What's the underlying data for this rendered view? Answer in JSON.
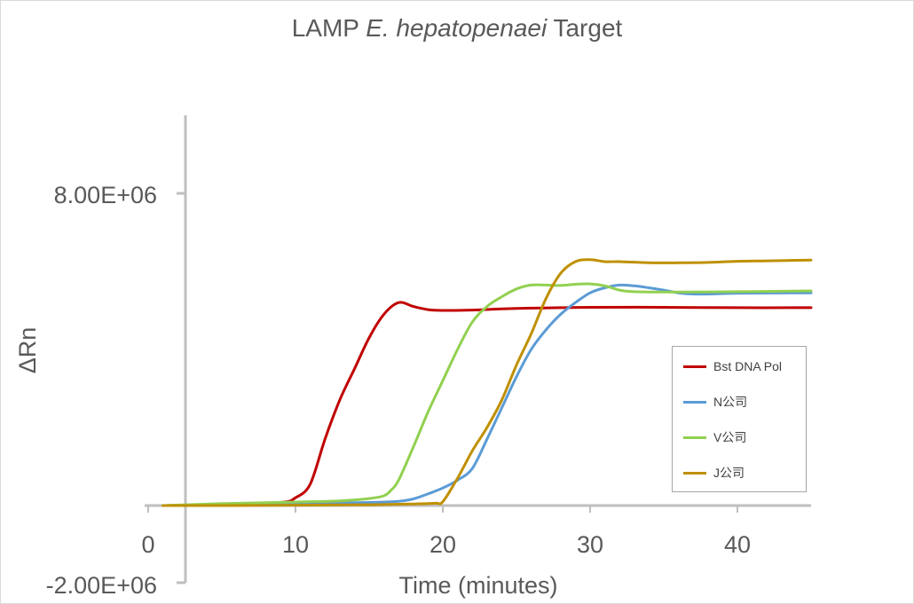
{
  "chart_data": {
    "type": "line",
    "title_plain": "LAMP ",
    "title_italic": "E. hepatopenaei",
    "title_rest": " Target",
    "xlabel": "Time (minutes)",
    "ylabel": "ΔRn",
    "xlim": [
      0,
      45
    ],
    "ylim": [
      -2000000,
      10000000
    ],
    "x_ticks": [
      "0",
      "10",
      "20",
      "30",
      "40"
    ],
    "y_ticks": [
      "8.00E+06",
      "-2.00E+06"
    ],
    "y_tick_values": [
      8000000,
      -2000000
    ],
    "x_tick_values": [
      0,
      10,
      20,
      30,
      40
    ],
    "legend_position": "right",
    "series": [
      {
        "name": "Bst DNA Pol",
        "color": "#c00000",
        "points": [
          [
            1,
            0
          ],
          [
            5,
            20000
          ],
          [
            9,
            80000
          ],
          [
            10,
            200000
          ],
          [
            11,
            550000
          ],
          [
            12,
            1700000
          ],
          [
            13,
            2700000
          ],
          [
            14,
            3500000
          ],
          [
            15,
            4300000
          ],
          [
            16,
            4900000
          ],
          [
            17,
            5200000
          ],
          [
            18,
            5100000
          ],
          [
            19,
            5020000
          ],
          [
            20,
            5000000
          ],
          [
            22,
            5010000
          ],
          [
            24,
            5040000
          ],
          [
            26,
            5060000
          ],
          [
            28,
            5070000
          ],
          [
            30,
            5080000
          ],
          [
            35,
            5080000
          ],
          [
            40,
            5070000
          ],
          [
            45,
            5070000
          ]
        ]
      },
      {
        "name": "N公司",
        "color": "#5b9bd5",
        "points": [
          [
            1,
            0
          ],
          [
            5,
            20000
          ],
          [
            10,
            50000
          ],
          [
            15,
            80000
          ],
          [
            17,
            110000
          ],
          [
            18,
            170000
          ],
          [
            19,
            300000
          ],
          [
            20,
            450000
          ],
          [
            21,
            650000
          ],
          [
            22,
            950000
          ],
          [
            23,
            1700000
          ],
          [
            24,
            2500000
          ],
          [
            25,
            3300000
          ],
          [
            26,
            4000000
          ],
          [
            27,
            4500000
          ],
          [
            28,
            4900000
          ],
          [
            29,
            5200000
          ],
          [
            30,
            5450000
          ],
          [
            31,
            5580000
          ],
          [
            32,
            5650000
          ],
          [
            33,
            5630000
          ],
          [
            34,
            5580000
          ],
          [
            35,
            5520000
          ],
          [
            36,
            5450000
          ],
          [
            37,
            5420000
          ],
          [
            38,
            5420000
          ],
          [
            40,
            5440000
          ],
          [
            45,
            5450000
          ]
        ]
      },
      {
        "name": "V公司",
        "color": "#92d050",
        "points": [
          [
            1,
            0
          ],
          [
            5,
            50000
          ],
          [
            10,
            90000
          ],
          [
            13,
            120000
          ],
          [
            15,
            180000
          ],
          [
            16,
            250000
          ],
          [
            16.5,
            400000
          ],
          [
            17,
            650000
          ],
          [
            18,
            1500000
          ],
          [
            19,
            2400000
          ],
          [
            20,
            3200000
          ],
          [
            21,
            4000000
          ],
          [
            22,
            4700000
          ],
          [
            23,
            5100000
          ],
          [
            24,
            5350000
          ],
          [
            25,
            5550000
          ],
          [
            26,
            5650000
          ],
          [
            27,
            5650000
          ],
          [
            28,
            5640000
          ],
          [
            29,
            5670000
          ],
          [
            30,
            5680000
          ],
          [
            31,
            5630000
          ],
          [
            32,
            5520000
          ],
          [
            33,
            5480000
          ],
          [
            35,
            5470000
          ],
          [
            40,
            5480000
          ],
          [
            45,
            5500000
          ]
        ]
      },
      {
        "name": "J公司",
        "color": "#bf9000",
        "points": [
          [
            1,
            0
          ],
          [
            5,
            0
          ],
          [
            10,
            10000
          ],
          [
            15,
            20000
          ],
          [
            18,
            40000
          ],
          [
            19.5,
            60000
          ],
          [
            20,
            100000
          ],
          [
            21,
            700000
          ],
          [
            22,
            1400000
          ],
          [
            23,
            2000000
          ],
          [
            24,
            2700000
          ],
          [
            25,
            3600000
          ],
          [
            26,
            4400000
          ],
          [
            27,
            5300000
          ],
          [
            28,
            5950000
          ],
          [
            29,
            6250000
          ],
          [
            30,
            6300000
          ],
          [
            31,
            6250000
          ],
          [
            32,
            6250000
          ],
          [
            34,
            6220000
          ],
          [
            36,
            6220000
          ],
          [
            38,
            6230000
          ],
          [
            40,
            6260000
          ],
          [
            42,
            6270000
          ],
          [
            45,
            6290000
          ]
        ]
      }
    ]
  }
}
